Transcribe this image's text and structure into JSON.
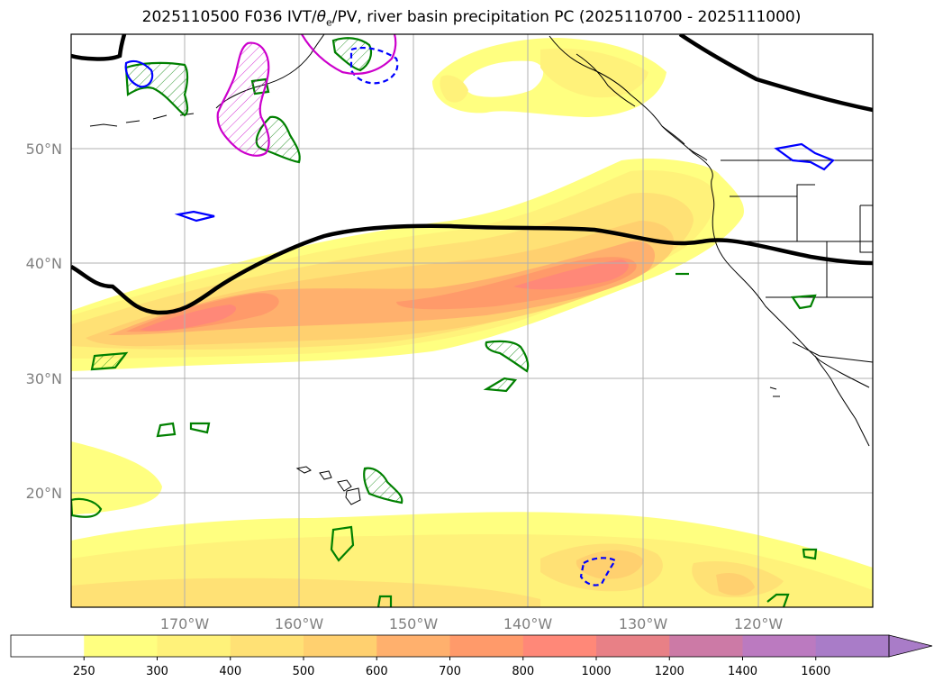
{
  "title_prefix": "2025110500 F036 IVT/",
  "title_theta": "θ",
  "title_theta_sub": "e",
  "title_suffix": "/PV, river basin precipitation PC (2025110700 - 2025111000)",
  "latitude_labels": [
    "50°N",
    "40°N",
    "30°N",
    "20°N"
  ],
  "longitude_labels": [
    "170°W",
    "160°W",
    "150°W",
    "140°W",
    "130°W",
    "120°W"
  ],
  "colorbar": {
    "ticks": [
      "250",
      "300",
      "400",
      "500",
      "600",
      "700",
      "800",
      "1000",
      "1200",
      "1400",
      "1600"
    ],
    "colors": [
      "#ffffff",
      "#ffff80",
      "#fff27a",
      "#ffe175",
      "#ffd06f",
      "#ffb06d",
      "#ff9a6a",
      "#ff8878",
      "#e88086",
      "#cc7aa6",
      "#bb7ac0",
      "#a97cc8"
    ],
    "extend": "max"
  },
  "colors": {
    "ivt_low": "#ffff80",
    "ivt_mid": "#ffe175",
    "ivt_high": "#ffb06d",
    "ivt_peak": "#ff8878",
    "theta_contour": "#000000",
    "pv_green": "#008000",
    "pv_blue": "#0000ff",
    "pv_magenta": "#cc00cc"
  }
}
